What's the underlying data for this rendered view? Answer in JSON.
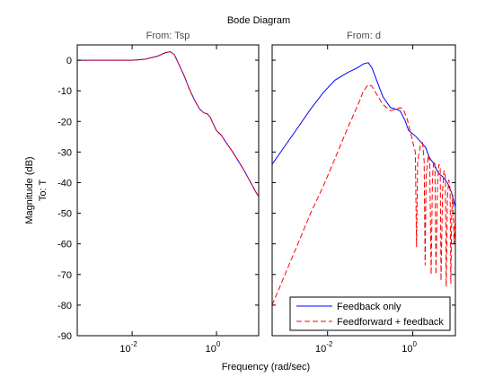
{
  "chart_data": {
    "type": "line",
    "title": "Bode Diagram",
    "xlabel": "Frequency  (rad/sec)",
    "ylabel": "Magnitude (dB)",
    "row_label": "To: T",
    "yticks": [
      0,
      -10,
      -20,
      -30,
      -40,
      -50,
      -60,
      -70,
      -80,
      -90
    ],
    "xticks": [
      {
        "value": 0.01,
        "base": "10",
        "exp": "-2"
      },
      {
        "value": 1,
        "base": "10",
        "exp": "0"
      }
    ],
    "xscale": "log",
    "colors": {
      "feedback": "#0000ff",
      "feedforward": "#ff0000"
    },
    "panels": [
      {
        "title": "From: Tsp",
        "xlim": [
          0.0005,
          10
        ],
        "ylim": [
          -90,
          5
        ],
        "series": [
          {
            "name": "Feedback only",
            "color": "#0000ff",
            "dash": false,
            "points": [
              [
                0.0005,
                0
              ],
              [
                0.003,
                0
              ],
              [
                0.01,
                0
              ],
              [
                0.02,
                0.3
              ],
              [
                0.04,
                1.3
              ],
              [
                0.06,
                2.4
              ],
              [
                0.08,
                2.8
              ],
              [
                0.1,
                1.8
              ],
              [
                0.13,
                -1.5
              ],
              [
                0.17,
                -5
              ],
              [
                0.22,
                -9
              ],
              [
                0.3,
                -13
              ],
              [
                0.4,
                -16
              ],
              [
                0.5,
                -17.2
              ],
              [
                0.6,
                -17.5
              ],
              [
                0.7,
                -18.5
              ],
              [
                0.85,
                -21
              ],
              [
                1,
                -23
              ],
              [
                1.3,
                -24.5
              ],
              [
                1.7,
                -27
              ],
              [
                2.3,
                -29.5
              ],
              [
                3,
                -32
              ],
              [
                4.5,
                -36
              ],
              [
                6.5,
                -40
              ],
              [
                8.5,
                -43
              ],
              [
                10,
                -44.5
              ]
            ]
          },
          {
            "name": "Feedforward + feedback",
            "color": "#ff0000",
            "dash": true,
            "points": [
              [
                0.0005,
                0
              ],
              [
                0.003,
                0
              ],
              [
                0.01,
                0
              ],
              [
                0.02,
                0.3
              ],
              [
                0.04,
                1.3
              ],
              [
                0.06,
                2.4
              ],
              [
                0.08,
                2.8
              ],
              [
                0.1,
                1.8
              ],
              [
                0.13,
                -1.5
              ],
              [
                0.17,
                -5
              ],
              [
                0.22,
                -9
              ],
              [
                0.3,
                -13
              ],
              [
                0.4,
                -16
              ],
              [
                0.5,
                -17.2
              ],
              [
                0.6,
                -17.5
              ],
              [
                0.7,
                -18.5
              ],
              [
                0.85,
                -21
              ],
              [
                1,
                -23
              ],
              [
                1.3,
                -24.5
              ],
              [
                1.7,
                -27
              ],
              [
                2.3,
                -29.5
              ],
              [
                3,
                -32
              ],
              [
                4.5,
                -36
              ],
              [
                6.5,
                -40
              ],
              [
                8.5,
                -43
              ],
              [
                10,
                -44.5
              ]
            ]
          }
        ]
      },
      {
        "title": "From: d",
        "xlim": [
          0.0005,
          10
        ],
        "ylim": [
          -90,
          5
        ],
        "series": [
          {
            "name": "Feedback only",
            "color": "#0000ff",
            "dash": false,
            "points": [
              [
                0.0005,
                -34
              ],
              [
                0.001,
                -28
              ],
              [
                0.002,
                -22
              ],
              [
                0.004,
                -16
              ],
              [
                0.008,
                -10.5
              ],
              [
                0.015,
                -6.5
              ],
              [
                0.03,
                -4
              ],
              [
                0.05,
                -2.5
              ],
              [
                0.07,
                -1.2
              ],
              [
                0.09,
                -0.8
              ],
              [
                0.11,
                -2.5
              ],
              [
                0.15,
                -7.5
              ],
              [
                0.2,
                -12
              ],
              [
                0.3,
                -15.5
              ],
              [
                0.4,
                -16
              ],
              [
                0.5,
                -16.5
              ],
              [
                0.65,
                -19.5
              ],
              [
                0.8,
                -23
              ],
              [
                1.2,
                -25
              ],
              [
                1.6,
                -27
              ],
              [
                2,
                -28.5
              ],
              [
                2.5,
                -32
              ],
              [
                3.2,
                -34
              ],
              [
                4,
                -37
              ],
              [
                5,
                -38
              ],
              [
                6.5,
                -40
              ],
              [
                8,
                -43
              ],
              [
                10,
                -48
              ]
            ]
          },
          {
            "name": "Feedforward + feedback",
            "color": "#ff0000",
            "dash": true,
            "points": [
              [
                0.0005,
                -80
              ],
              [
                0.001,
                -70
              ],
              [
                0.002,
                -60
              ],
              [
                0.004,
                -50
              ],
              [
                0.008,
                -41
              ],
              [
                0.015,
                -32
              ],
              [
                0.03,
                -22
              ],
              [
                0.05,
                -15
              ],
              [
                0.07,
                -10
              ],
              [
                0.09,
                -8
              ],
              [
                0.11,
                -8.5
              ],
              [
                0.14,
                -11
              ],
              [
                0.2,
                -14.5
              ],
              [
                0.3,
                -16.5
              ],
              [
                0.42,
                -16
              ],
              [
                0.5,
                -15.5
              ],
              [
                0.6,
                -16
              ],
              [
                0.75,
                -19.5
              ],
              [
                0.9,
                -24
              ],
              [
                1.05,
                -28
              ],
              [
                1.15,
                -30
              ],
              [
                1.22,
                -61
              ],
              [
                1.3,
                -33
              ],
              [
                1.5,
                -28
              ],
              [
                1.7,
                -27
              ],
              [
                1.85,
                -33
              ],
              [
                1.95,
                -67
              ],
              [
                2.05,
                -38
              ],
              [
                2.3,
                -31
              ],
              [
                2.5,
                -33
              ],
              [
                2.7,
                -70
              ],
              [
                2.9,
                -38
              ],
              [
                3.1,
                -33
              ],
              [
                3.3,
                -34
              ],
              [
                3.5,
                -70
              ],
              [
                3.8,
                -41
              ],
              [
                4.1,
                -34
              ],
              [
                4.4,
                -35
              ],
              [
                4.6,
                -72
              ],
              [
                5,
                -43
              ],
              [
                5.4,
                -36
              ],
              [
                5.8,
                -38
              ],
              [
                6.1,
                -74
              ],
              [
                6.5,
                -45
              ],
              [
                7,
                -39
              ],
              [
                7.5,
                -42
              ],
              [
                7.8,
                -73
              ],
              [
                8.2,
                -50
              ],
              [
                8.7,
                -44
              ],
              [
                9.3,
                -60
              ],
              [
                10,
                -50
              ]
            ]
          }
        ]
      }
    ],
    "legend": {
      "placement": "bottom-right of right panel",
      "entries": [
        {
          "label": "Feedback only",
          "color": "#0000ff",
          "dash": false
        },
        {
          "label": "Feedforward + feedback",
          "color": "#ff0000",
          "dash": true
        }
      ]
    }
  }
}
